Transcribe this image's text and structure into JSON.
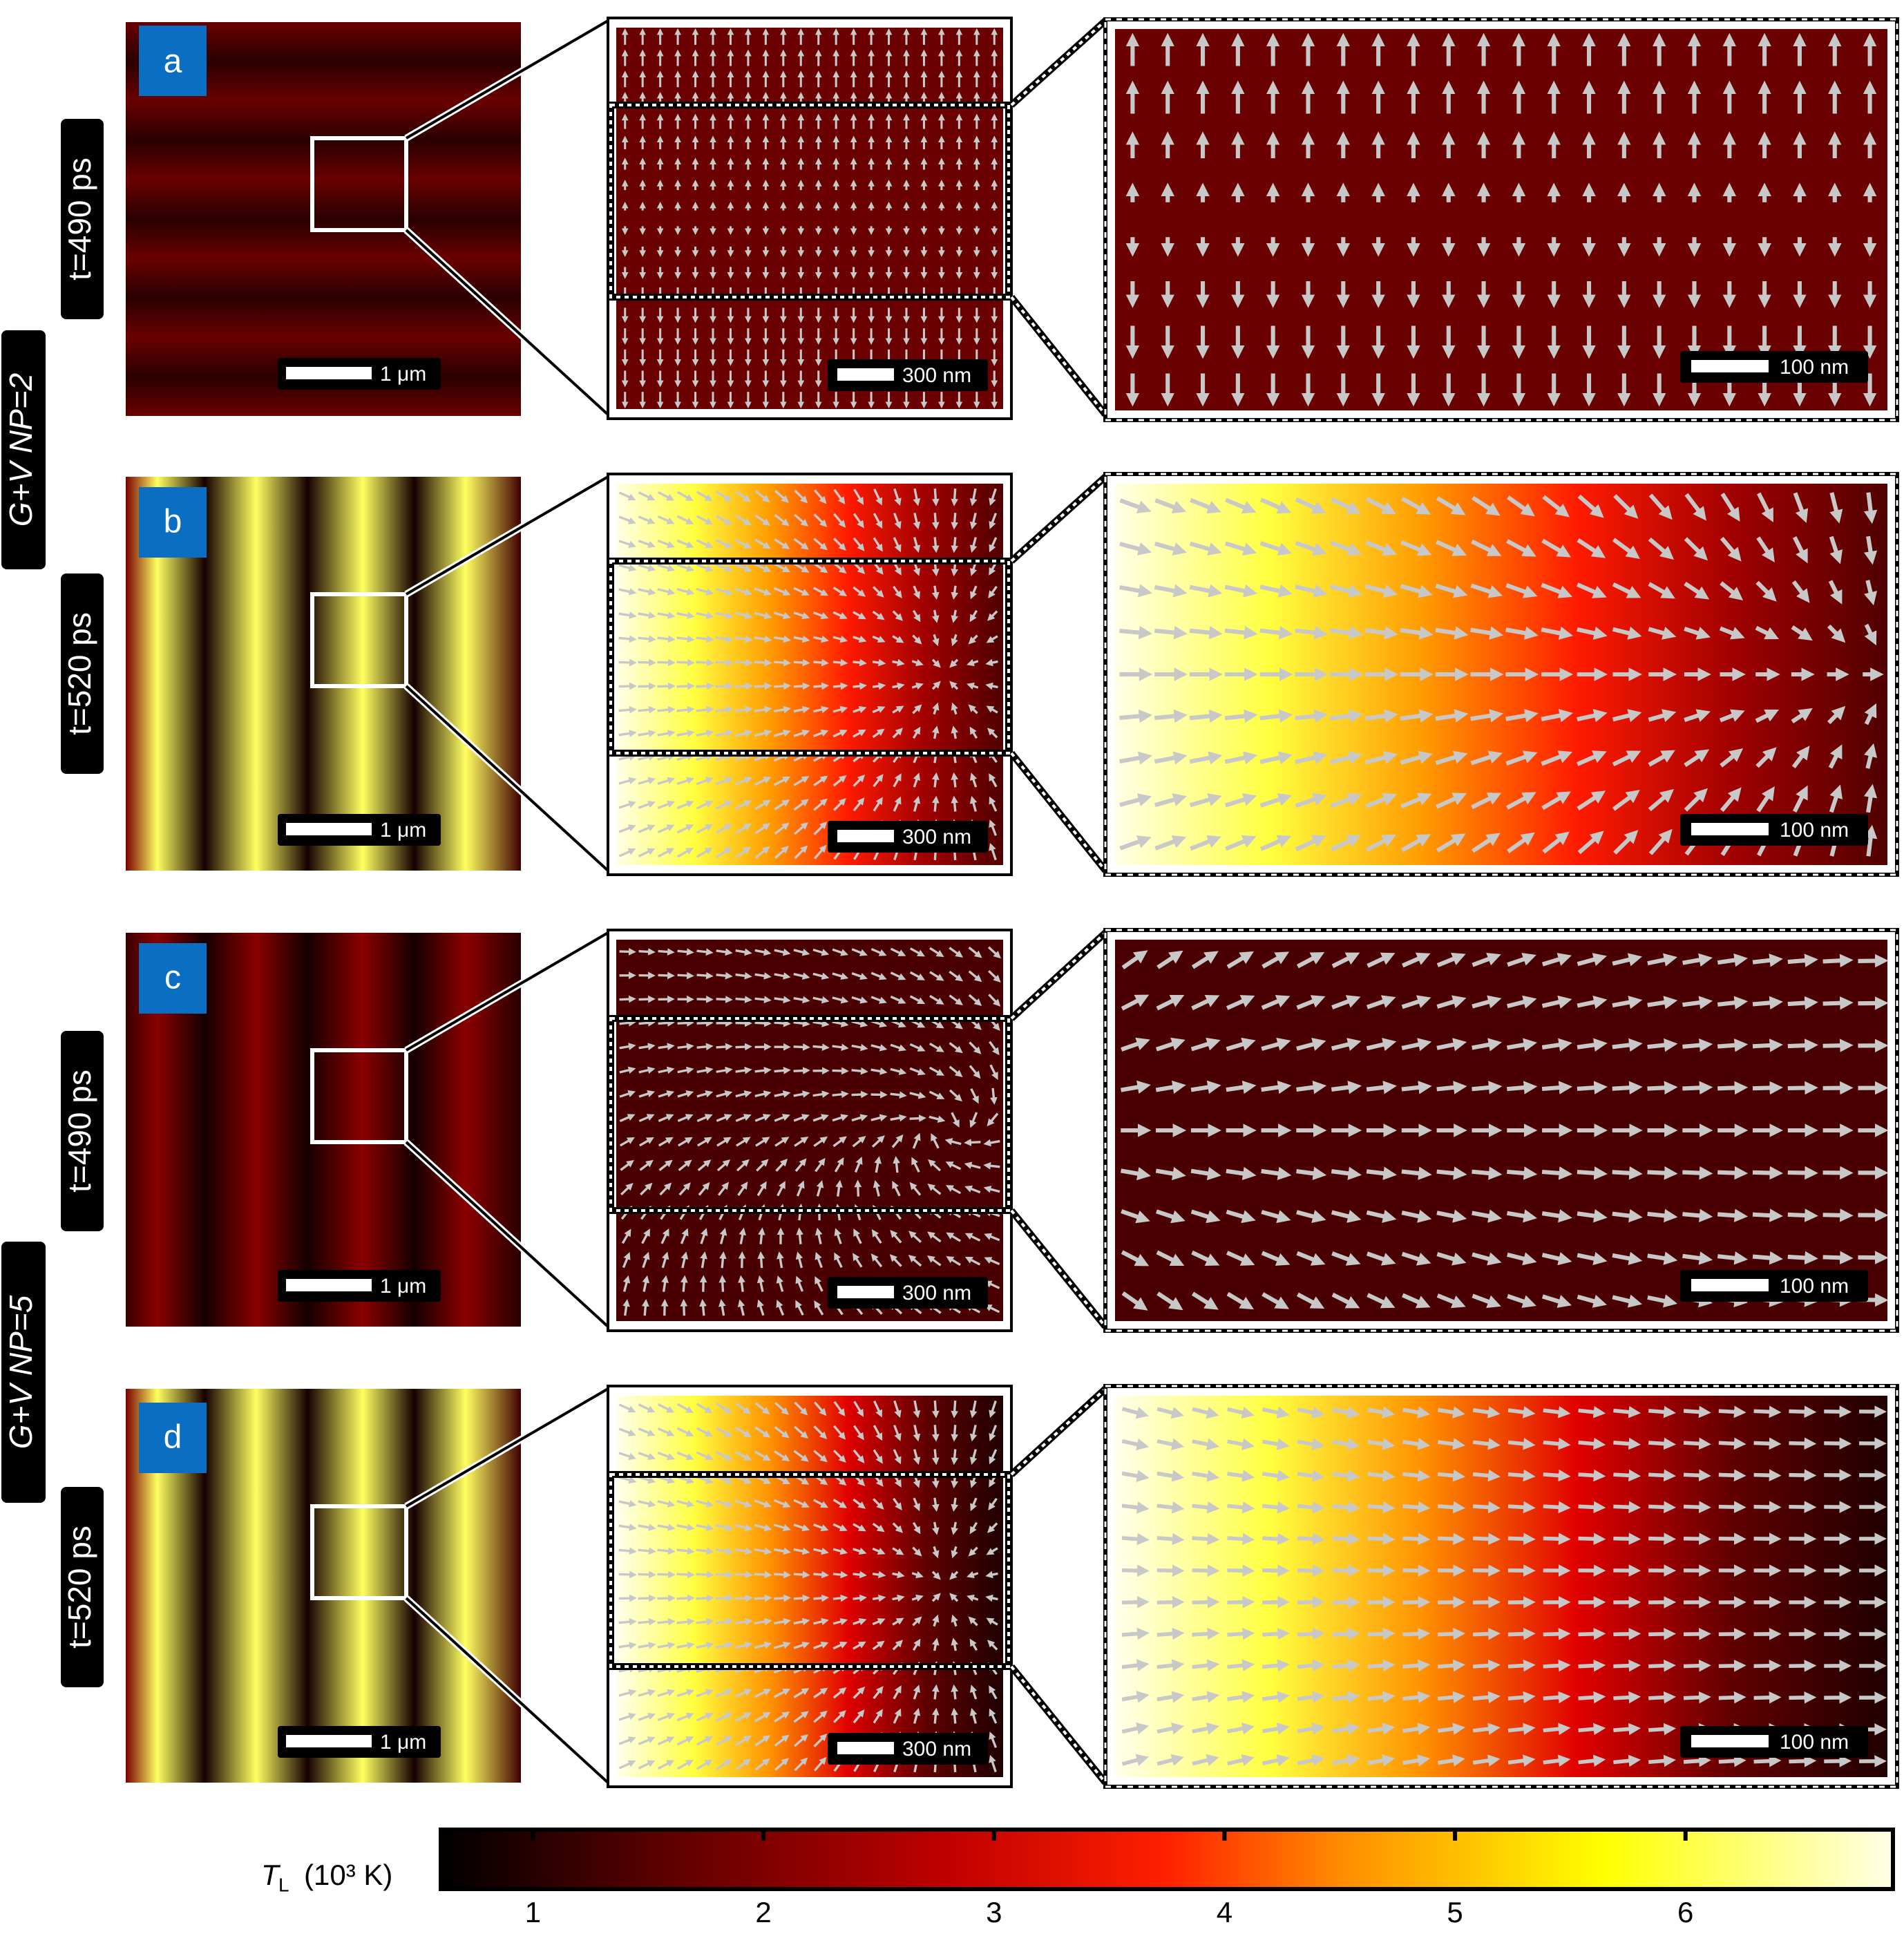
{
  "group_labels": [
    "G+V NP=2",
    "G+V NP=5"
  ],
  "rows": [
    {
      "panel": "a",
      "time_label": "t=490 ps",
      "state": "cool-uniform"
    },
    {
      "panel": "b",
      "time_label": "t=520 ps",
      "state": "hot-gradient"
    },
    {
      "panel": "c",
      "time_label": "t=490 ps",
      "state": "cool-vortex"
    },
    {
      "panel": "d",
      "time_label": "t=520 ps",
      "state": "hot-gradient"
    }
  ],
  "scale_bars": {
    "large": "1 μm",
    "medium": "300 nm",
    "small": "100 nm"
  },
  "colorbar": {
    "title_symbol": "T",
    "title_subscript": "L",
    "title_unit": "(10³ K)",
    "ticks": [
      "1",
      "2",
      "3",
      "4",
      "5",
      "6"
    ],
    "range": [
      0.6,
      6.9
    ],
    "colors": [
      "#000000",
      "#5a0000",
      "#c00000",
      "#ff2000",
      "#ff8c00",
      "#ffff00",
      "#ffffe8"
    ]
  },
  "colors": {
    "panel_badge": "#0a6fc2",
    "arrow": "#c8c8c8",
    "frame": "#000000"
  }
}
